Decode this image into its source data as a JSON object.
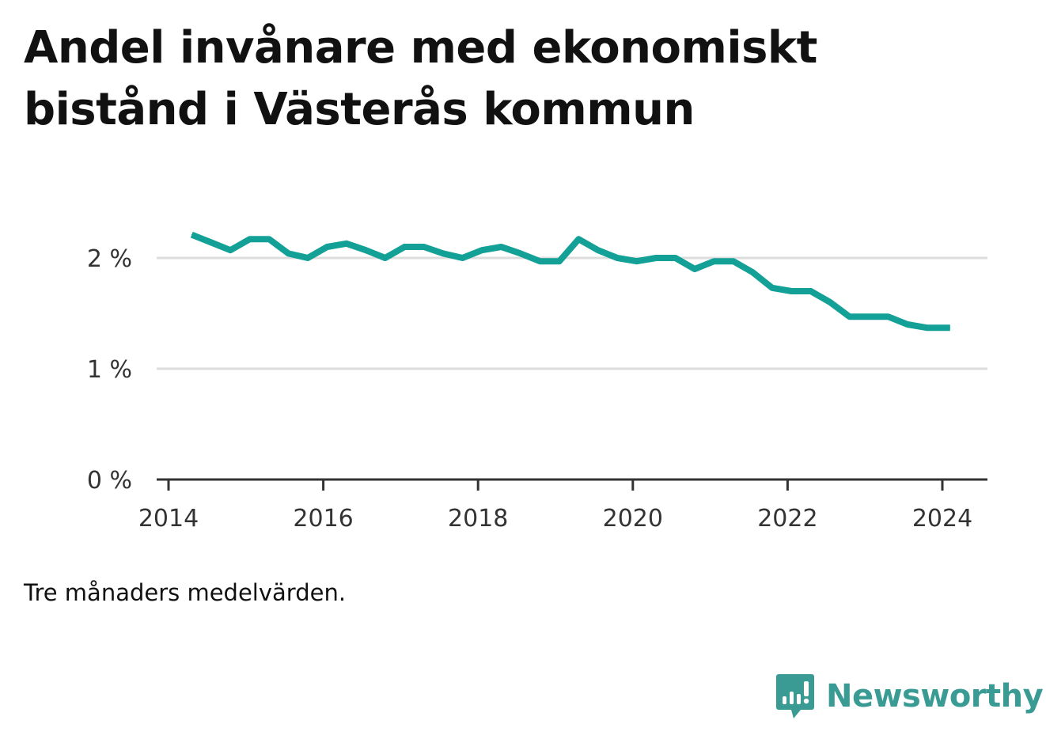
{
  "title": "Andel invånare med ekonomiskt bistånd i Västerås kommun",
  "note": "Tre månaders medelvärden.",
  "brand": {
    "name": "Newsworthy",
    "color": "#3a9b95",
    "icon": "bar-chart-speech-bubble-icon"
  },
  "colors": {
    "line": "#12a097",
    "grid": "#dddddd",
    "axis": "#333333"
  },
  "chart_data": {
    "type": "line",
    "title": "Andel invånare med ekonomiskt bistånd i Västerås kommun",
    "xlabel": "",
    "ylabel": "",
    "xlim": [
      2014,
      2024.6
    ],
    "ylim": [
      0,
      2.4
    ],
    "x_ticks": [
      2014,
      2016,
      2018,
      2020,
      2022,
      2024
    ],
    "x_tick_labels": [
      "2014",
      "2016",
      "2018",
      "2020",
      "2022",
      "2024"
    ],
    "y_ticks": [
      0,
      1,
      2
    ],
    "y_tick_labels": [
      "0 %",
      "1 %",
      "2 %"
    ],
    "grid": true,
    "legend": "none",
    "series": [
      {
        "x": [
          2014.3,
          2014.55,
          2014.8,
          2015.05,
          2015.3,
          2015.55,
          2015.8,
          2016.05,
          2016.3,
          2016.55,
          2016.8,
          2017.05,
          2017.3,
          2017.55,
          2017.8,
          2018.05,
          2018.3,
          2018.55,
          2018.8,
          2019.05,
          2019.3,
          2019.55,
          2019.8,
          2020.05,
          2020.3,
          2020.55,
          2020.8,
          2021.05,
          2021.3,
          2021.55,
          2021.8,
          2022.05,
          2022.3,
          2022.55,
          2022.8,
          2023.05,
          2023.3,
          2023.55,
          2023.8,
          2024.1
        ],
        "values": [
          2.21,
          2.14,
          2.07,
          2.17,
          2.17,
          2.04,
          2.0,
          2.1,
          2.13,
          2.07,
          2.0,
          2.1,
          2.1,
          2.04,
          2.0,
          2.07,
          2.1,
          2.04,
          1.97,
          1.97,
          2.17,
          2.07,
          2.0,
          1.97,
          2.0,
          2.0,
          1.9,
          1.97,
          1.97,
          1.87,
          1.73,
          1.7,
          1.7,
          1.6,
          1.47,
          1.47,
          1.47,
          1.4,
          1.37,
          1.37
        ]
      }
    ]
  }
}
